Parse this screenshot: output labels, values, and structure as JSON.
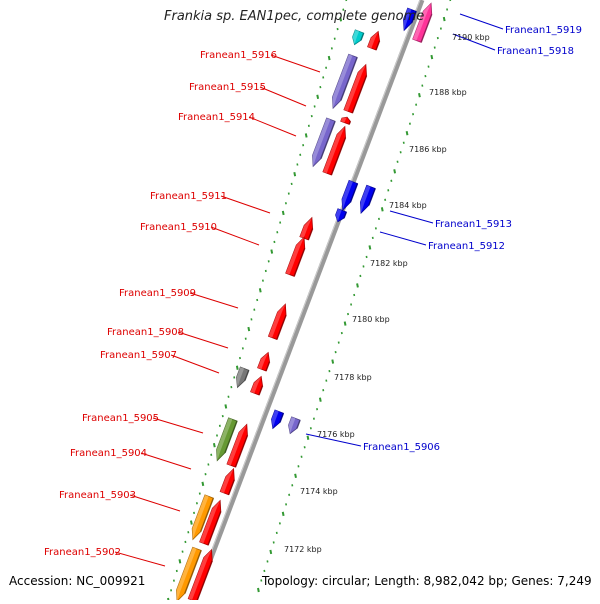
{
  "title": "Frankia sp. EAN1pec, complete genome",
  "footer": {
    "accession": "Accession: NC_009921",
    "topology": "Topology: circular; Length: 8,982,042 bp; Genes: 7,249"
  },
  "colors": {
    "reverse_label": "#dd0000",
    "forward_label": "#0000cc",
    "backbone": "#999999",
    "ticks": "#339933",
    "red": "#ff0000",
    "blue": "#0000ee",
    "purple": "#7766cc",
    "orange": "#ff9900",
    "green": "#669933",
    "cyan": "#00cccc",
    "magenta": "#ff3399",
    "gray": "#777777"
  },
  "scale": {
    "unit": "kbp",
    "ticks": [
      "7172 kbp",
      "7174 kbp",
      "7176 kbp",
      "7178 kbp",
      "7180 kbp",
      "7182 kbp",
      "7184 kbp",
      "7186 kbp",
      "7188 kbp",
      "7190 kbp"
    ]
  },
  "genes_reverse": [
    "Franean1_5916",
    "Franean1_5915",
    "Franean1_5914",
    "Franean1_5911",
    "Franean1_5910",
    "Franean1_5909",
    "Franean1_5908",
    "Franean1_5907",
    "Franean1_5905",
    "Franean1_5904",
    "Franean1_5903",
    "Franean1_5902"
  ],
  "genes_forward": [
    "Franean1_5919",
    "Franean1_5918",
    "Franean1_5913",
    "Franean1_5912",
    "Franean1_5906"
  ]
}
